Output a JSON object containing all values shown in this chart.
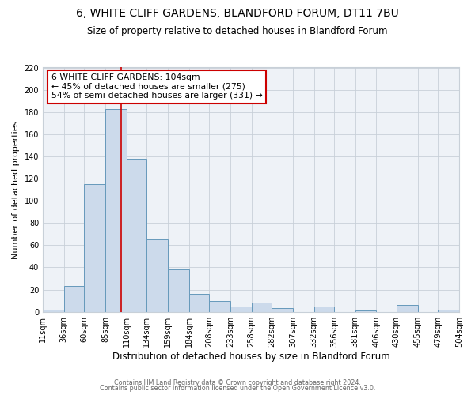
{
  "title": "6, WHITE CLIFF GARDENS, BLANDFORD FORUM, DT11 7BU",
  "subtitle": "Size of property relative to detached houses in Blandford Forum",
  "xlabel": "Distribution of detached houses by size in Blandford Forum",
  "ylabel": "Number of detached properties",
  "bin_edges": [
    11,
    36,
    60,
    85,
    110,
    134,
    159,
    184,
    208,
    233,
    258,
    282,
    307,
    332,
    356,
    381,
    406,
    430,
    455,
    479,
    504
  ],
  "bin_counts": [
    2,
    23,
    115,
    183,
    138,
    65,
    38,
    16,
    10,
    5,
    8,
    3,
    0,
    5,
    0,
    1,
    0,
    6,
    0,
    2
  ],
  "bar_facecolor": "#ccdaeb",
  "bar_edgecolor": "#6699bb",
  "vline_x": 104,
  "vline_color": "#cc0000",
  "ylim": [
    0,
    220
  ],
  "yticks": [
    0,
    20,
    40,
    60,
    80,
    100,
    120,
    140,
    160,
    180,
    200,
    220
  ],
  "annotation_box_text": "6 WHITE CLIFF GARDENS: 104sqm\n← 45% of detached houses are smaller (275)\n54% of semi-detached houses are larger (331) →",
  "footer_line1": "Contains HM Land Registry data © Crown copyright and database right 2024.",
  "footer_line2": "Contains public sector information licensed under the Open Government Licence v3.0.",
  "grid_color": "#c8d0d8",
  "background_color": "#eef2f7",
  "title_fontsize": 10,
  "subtitle_fontsize": 8.5,
  "xlabel_fontsize": 8.5,
  "ylabel_fontsize": 8,
  "annot_fontsize": 7.8,
  "tick_fontsize": 7,
  "tick_labels": [
    "11sqm",
    "36sqm",
    "60sqm",
    "85sqm",
    "110sqm",
    "134sqm",
    "159sqm",
    "184sqm",
    "208sqm",
    "233sqm",
    "258sqm",
    "282sqm",
    "307sqm",
    "332sqm",
    "356sqm",
    "381sqm",
    "406sqm",
    "430sqm",
    "455sqm",
    "479sqm",
    "504sqm"
  ]
}
